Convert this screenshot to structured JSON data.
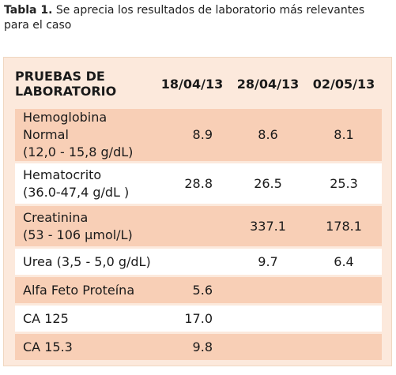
{
  "caption": {
    "label": "Tabla 1.",
    "text": " Se aprecia los resultados de laboratorio más relevantes para el caso"
  },
  "table": {
    "header": {
      "tests_line1": "PRUEBAS DE",
      "tests_line2": "LABORATORIO",
      "dates": [
        "18/04/13",
        "28/04/13",
        "02/05/13"
      ]
    },
    "rows": [
      {
        "name_line1": "Hemoglobina Normal",
        "name_line2": "(12,0 - 15,8 g/dL)",
        "values": [
          "8.9",
          "8.6",
          "8.1"
        ]
      },
      {
        "name_line1": "Hematocrito",
        "name_line2": "(36.0-47,4 g/dL )",
        "values": [
          "28.8",
          "26.5",
          "25.3"
        ]
      },
      {
        "name_line1": "Creatinina",
        "name_line2": "(53 - 106 µmol/L)",
        "values": [
          "",
          "337.1",
          "178.1"
        ]
      },
      {
        "name_line1": "Urea (3,5 - 5,0 g/dL)",
        "name_line2": "",
        "values": [
          "",
          "9.7",
          "6.4"
        ]
      },
      {
        "name_line1": "Alfa Feto Proteína",
        "name_line2": "",
        "values": [
          "5.6",
          "",
          ""
        ]
      },
      {
        "name_line1": "CA 125",
        "name_line2": "",
        "values": [
          "17.0",
          "",
          ""
        ]
      },
      {
        "name_line1": "CA 15.3",
        "name_line2": "",
        "values": [
          "9.8",
          "",
          ""
        ]
      }
    ]
  }
}
